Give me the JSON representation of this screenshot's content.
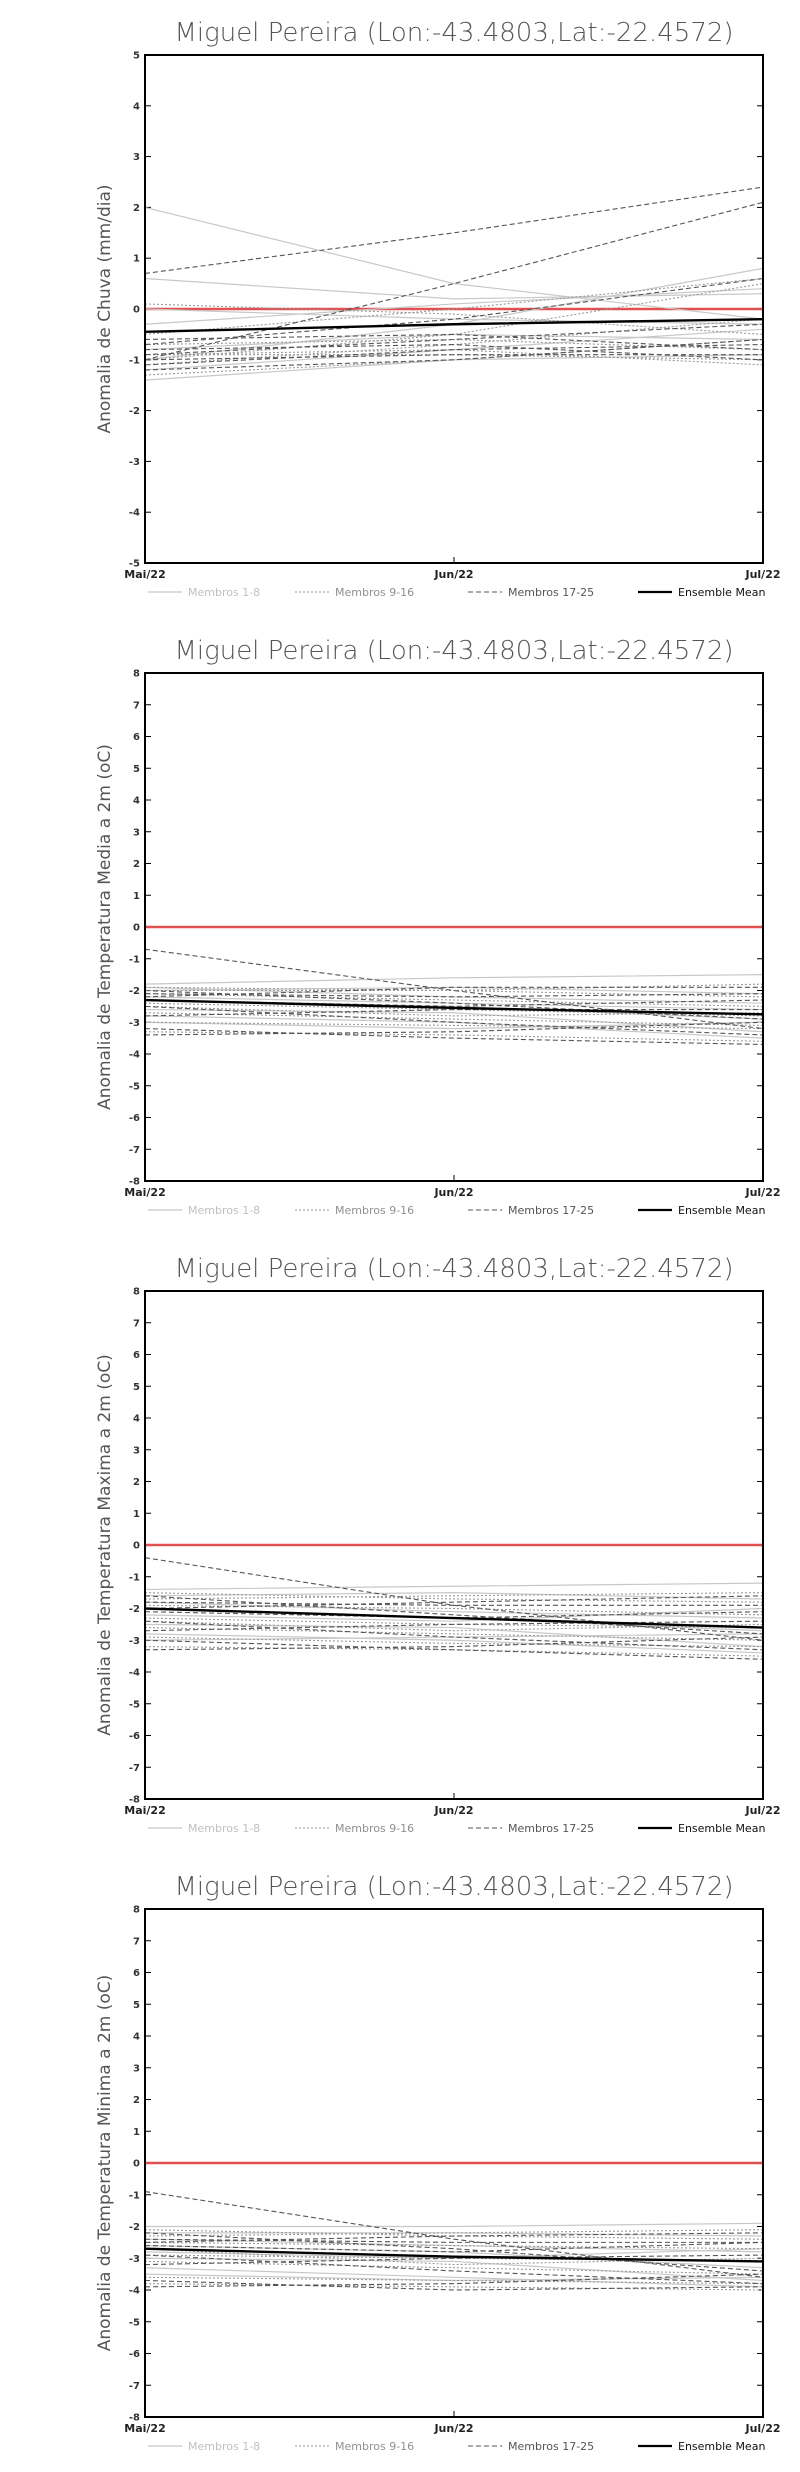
{
  "chart_data": [
    {
      "type": "line",
      "title": "Miguel Pereira (Lon:-43.4803,Lat:-22.4572)",
      "ylabel": "Anomalia de Chuva (mm/dia)",
      "ylim": [
        -5,
        5
      ],
      "yticks": [
        -5,
        -4,
        -3,
        -2,
        -1,
        0,
        1,
        2,
        3,
        4,
        5
      ],
      "categories": [
        "Mai/22",
        "Jun/22",
        "Jul/22"
      ],
      "zero_line_color": "#e05050",
      "legend": [
        {
          "label": "Membros 1-8",
          "style": "light"
        },
        {
          "label": "Membros 9-16",
          "style": "dotted"
        },
        {
          "label": "Membros 17-25",
          "style": "dashed"
        },
        {
          "label": "Ensemble Mean",
          "style": "mean"
        }
      ],
      "series": [
        {
          "group": "m1-8",
          "values": [
            2.0,
            0.5,
            -0.2
          ]
        },
        {
          "group": "m1-8",
          "values": [
            -1.0,
            -0.3,
            0.8
          ]
        },
        {
          "group": "m1-8",
          "values": [
            -1.4,
            -1.0,
            -0.9
          ]
        },
        {
          "group": "m1-8",
          "values": [
            0.6,
            0.2,
            0.3
          ]
        },
        {
          "group": "m1-8",
          "values": [
            -0.3,
            0.1,
            0.4
          ]
        },
        {
          "group": "m1-8",
          "values": [
            -0.8,
            -0.5,
            -0.6
          ]
        },
        {
          "group": "m1-8",
          "values": [
            -1.2,
            -0.8,
            -0.4
          ]
        },
        {
          "group": "m1-8",
          "values": [
            0.0,
            -0.2,
            -0.3
          ]
        },
        {
          "group": "m9-16",
          "values": [
            -1.0,
            -0.5,
            0.5
          ]
        },
        {
          "group": "m9-16",
          "values": [
            -0.9,
            -0.9,
            -1.0
          ]
        },
        {
          "group": "m9-16",
          "values": [
            -0.5,
            0.0,
            0.6
          ]
        },
        {
          "group": "m9-16",
          "values": [
            -1.1,
            -0.7,
            -0.2
          ]
        },
        {
          "group": "m9-16",
          "values": [
            -0.7,
            -0.6,
            -0.8
          ]
        },
        {
          "group": "m9-16",
          "values": [
            -1.3,
            -1.0,
            -0.6
          ]
        },
        {
          "group": "m9-16",
          "values": [
            0.1,
            -0.1,
            -0.5
          ]
        },
        {
          "group": "m9-16",
          "values": [
            -0.9,
            -0.8,
            -1.1
          ]
        },
        {
          "group": "m17-25",
          "values": [
            0.7,
            1.5,
            2.4
          ]
        },
        {
          "group": "m17-25",
          "values": [
            -1.0,
            0.5,
            2.1
          ]
        },
        {
          "group": "m17-25",
          "values": [
            -0.7,
            -0.2,
            0.6
          ]
        },
        {
          "group": "m17-25",
          "values": [
            -1.1,
            -0.8,
            -0.7
          ]
        },
        {
          "group": "m17-25",
          "values": [
            -0.9,
            -0.6,
            -0.3
          ]
        },
        {
          "group": "m17-25",
          "values": [
            -1.0,
            -0.9,
            -0.9
          ]
        },
        {
          "group": "m17-25",
          "values": [
            -0.6,
            -0.5,
            -0.8
          ]
        },
        {
          "group": "m17-25",
          "values": [
            -1.2,
            -1.0,
            -0.6
          ]
        },
        {
          "group": "m17-25",
          "values": [
            -0.8,
            -0.7,
            -1.0
          ]
        },
        {
          "group": "mean",
          "values": [
            -0.45,
            -0.3,
            -0.2
          ]
        }
      ]
    },
    {
      "type": "line",
      "title": "Miguel Pereira (Lon:-43.4803,Lat:-22.4572)",
      "ylabel": "Anomalia de Temperatura Media a 2m (oC)",
      "ylim": [
        -8,
        8
      ],
      "yticks": [
        -8,
        -7,
        -6,
        -5,
        -4,
        -3,
        -2,
        -1,
        0,
        1,
        2,
        3,
        4,
        5,
        6,
        7,
        8
      ],
      "categories": [
        "Mai/22",
        "Jun/22",
        "Jul/22"
      ],
      "zero_line_color": "#e05050",
      "legend": [
        {
          "label": "Membros 1-8",
          "style": "light"
        },
        {
          "label": "Membros 9-16",
          "style": "dotted"
        },
        {
          "label": "Membros 17-25",
          "style": "dashed"
        },
        {
          "label": "Ensemble Mean",
          "style": "mean"
        }
      ],
      "series": [
        {
          "group": "m1-8",
          "values": [
            -1.8,
            -1.6,
            -1.5
          ]
        },
        {
          "group": "m1-8",
          "values": [
            -2.3,
            -2.5,
            -2.9
          ]
        },
        {
          "group": "m1-8",
          "values": [
            -3.0,
            -3.2,
            -3.0
          ]
        },
        {
          "group": "m1-8",
          "values": [
            -2.0,
            -1.9,
            -2.1
          ]
        },
        {
          "group": "m1-8",
          "values": [
            -2.6,
            -2.7,
            -3.3
          ]
        },
        {
          "group": "m1-8",
          "values": [
            -2.2,
            -2.4,
            -2.6
          ]
        },
        {
          "group": "m1-8",
          "values": [
            -1.9,
            -2.2,
            -2.4
          ]
        },
        {
          "group": "m1-8",
          "values": [
            -2.8,
            -3.0,
            -3.5
          ]
        },
        {
          "group": "m9-16",
          "values": [
            -2.0,
            -2.0,
            -1.8
          ]
        },
        {
          "group": "m9-16",
          "values": [
            -2.4,
            -2.6,
            -2.8
          ]
        },
        {
          "group": "m9-16",
          "values": [
            -3.3,
            -3.4,
            -3.6
          ]
        },
        {
          "group": "m9-16",
          "values": [
            -2.1,
            -2.3,
            -2.5
          ]
        },
        {
          "group": "m9-16",
          "values": [
            -2.7,
            -2.9,
            -3.1
          ]
        },
        {
          "group": "m9-16",
          "values": [
            -1.9,
            -2.0,
            -2.2
          ]
        },
        {
          "group": "m9-16",
          "values": [
            -2.5,
            -2.8,
            -2.7
          ]
        },
        {
          "group": "m9-16",
          "values": [
            -3.0,
            -3.1,
            -3.2
          ]
        },
        {
          "group": "m17-25",
          "values": [
            -0.7,
            -2.0,
            -3.2
          ]
        },
        {
          "group": "m17-25",
          "values": [
            -2.2,
            -1.9,
            -1.9
          ]
        },
        {
          "group": "m17-25",
          "values": [
            -3.2,
            -3.5,
            -3.7
          ]
        },
        {
          "group": "m17-25",
          "values": [
            -2.3,
            -2.5,
            -2.3
          ]
        },
        {
          "group": "m17-25",
          "values": [
            -2.0,
            -2.4,
            -2.9
          ]
        },
        {
          "group": "m17-25",
          "values": [
            -2.8,
            -2.6,
            -2.6
          ]
        },
        {
          "group": "m17-25",
          "values": [
            -2.5,
            -3.0,
            -3.4
          ]
        },
        {
          "group": "m17-25",
          "values": [
            -2.1,
            -2.2,
            -2.1
          ]
        },
        {
          "group": "m17-25",
          "values": [
            -3.4,
            -3.3,
            -3.0
          ]
        },
        {
          "group": "mean",
          "values": [
            -2.3,
            -2.55,
            -2.75
          ]
        }
      ]
    },
    {
      "type": "line",
      "title": "Miguel Pereira (Lon:-43.4803,Lat:-22.4572)",
      "ylabel": "Anomalia de Temperatura Maxima a 2m (oC)",
      "ylim": [
        -8,
        8
      ],
      "yticks": [
        -8,
        -7,
        -6,
        -5,
        -4,
        -3,
        -2,
        -1,
        0,
        1,
        2,
        3,
        4,
        5,
        6,
        7,
        8
      ],
      "categories": [
        "Mai/22",
        "Jun/22",
        "Jul/22"
      ],
      "zero_line_color": "#e05050",
      "legend": [
        {
          "label": "Membros 1-8",
          "style": "light"
        },
        {
          "label": "Membros 9-16",
          "style": "dotted"
        },
        {
          "label": "Membros 17-25",
          "style": "dashed"
        },
        {
          "label": "Ensemble Mean",
          "style": "mean"
        }
      ],
      "series": [
        {
          "group": "m1-8",
          "values": [
            -1.4,
            -1.3,
            -1.2
          ]
        },
        {
          "group": "m1-8",
          "values": [
            -2.0,
            -2.3,
            -2.7
          ]
        },
        {
          "group": "m1-8",
          "values": [
            -3.0,
            -2.9,
            -2.8
          ]
        },
        {
          "group": "m1-8",
          "values": [
            -1.6,
            -1.5,
            -1.7
          ]
        },
        {
          "group": "m1-8",
          "values": [
            -2.5,
            -2.6,
            -3.2
          ]
        },
        {
          "group": "m1-8",
          "values": [
            -1.8,
            -2.1,
            -2.3
          ]
        },
        {
          "group": "m1-8",
          "values": [
            -2.2,
            -2.4,
            -2.0
          ]
        },
        {
          "group": "m1-8",
          "values": [
            -2.8,
            -3.0,
            -3.4
          ]
        },
        {
          "group": "m9-16",
          "values": [
            -1.7,
            -1.6,
            -1.5
          ]
        },
        {
          "group": "m9-16",
          "values": [
            -2.3,
            -2.5,
            -2.6
          ]
        },
        {
          "group": "m9-16",
          "values": [
            -3.2,
            -3.3,
            -3.5
          ]
        },
        {
          "group": "m9-16",
          "values": [
            -1.9,
            -2.0,
            -2.2
          ]
        },
        {
          "group": "m9-16",
          "values": [
            -2.6,
            -2.8,
            -3.0
          ]
        },
        {
          "group": "m9-16",
          "values": [
            -1.5,
            -1.7,
            -1.8
          ]
        },
        {
          "group": "m9-16",
          "values": [
            -2.4,
            -2.7,
            -2.5
          ]
        },
        {
          "group": "m9-16",
          "values": [
            -2.9,
            -3.1,
            -3.2
          ]
        },
        {
          "group": "m17-25",
          "values": [
            -0.4,
            -1.9,
            -3.0
          ]
        },
        {
          "group": "m17-25",
          "values": [
            -2.0,
            -1.8,
            -1.6
          ]
        },
        {
          "group": "m17-25",
          "values": [
            -3.0,
            -3.3,
            -3.6
          ]
        },
        {
          "group": "m17-25",
          "values": [
            -2.1,
            -2.3,
            -2.1
          ]
        },
        {
          "group": "m17-25",
          "values": [
            -1.6,
            -2.2,
            -2.8
          ]
        },
        {
          "group": "m17-25",
          "values": [
            -2.7,
            -2.5,
            -2.4
          ]
        },
        {
          "group": "m17-25",
          "values": [
            -2.4,
            -2.9,
            -3.3
          ]
        },
        {
          "group": "m17-25",
          "values": [
            -1.8,
            -1.9,
            -1.9
          ]
        },
        {
          "group": "m17-25",
          "values": [
            -3.3,
            -3.2,
            -2.9
          ]
        },
        {
          "group": "mean",
          "values": [
            -2.0,
            -2.3,
            -2.6
          ]
        }
      ]
    },
    {
      "type": "line",
      "title": "Miguel Pereira (Lon:-43.4803,Lat:-22.4572)",
      "ylabel": "Anomalia de Temperatura Minima a 2m (oC)",
      "ylim": [
        -8,
        8
      ],
      "yticks": [
        -8,
        -7,
        -6,
        -5,
        -4,
        -3,
        -2,
        -1,
        0,
        1,
        2,
        3,
        4,
        5,
        6,
        7,
        8
      ],
      "categories": [
        "Mai/22",
        "Jun/22",
        "Jul/22"
      ],
      "zero_line_color": "#e05050",
      "legend": [
        {
          "label": "Membros 1-8",
          "style": "light"
        },
        {
          "label": "Membros 9-16",
          "style": "dotted"
        },
        {
          "label": "Membros 17-25",
          "style": "dashed"
        },
        {
          "label": "Ensemble Mean",
          "style": "mean"
        }
      ],
      "series": [
        {
          "group": "m1-8",
          "values": [
            -2.0,
            -2.0,
            -1.9
          ]
        },
        {
          "group": "m1-8",
          "values": [
            -2.6,
            -2.8,
            -3.3
          ]
        },
        {
          "group": "m1-8",
          "values": [
            -3.5,
            -3.7,
            -3.6
          ]
        },
        {
          "group": "m1-8",
          "values": [
            -2.2,
            -2.2,
            -2.3
          ]
        },
        {
          "group": "m1-8",
          "values": [
            -3.0,
            -3.1,
            -3.7
          ]
        },
        {
          "group": "m1-8",
          "values": [
            -2.4,
            -2.6,
            -2.8
          ]
        },
        {
          "group": "m1-8",
          "values": [
            -2.8,
            -3.0,
            -2.7
          ]
        },
        {
          "group": "m1-8",
          "values": [
            -3.3,
            -3.6,
            -3.9
          ]
        },
        {
          "group": "m9-16",
          "values": [
            -2.3,
            -2.2,
            -2.1
          ]
        },
        {
          "group": "m9-16",
          "values": [
            -2.9,
            -3.0,
            -3.1
          ]
        },
        {
          "group": "m9-16",
          "values": [
            -3.8,
            -3.9,
            -4.0
          ]
        },
        {
          "group": "m9-16",
          "values": [
            -2.5,
            -2.6,
            -2.7
          ]
        },
        {
          "group": "m9-16",
          "values": [
            -3.1,
            -3.3,
            -3.5
          ]
        },
        {
          "group": "m9-16",
          "values": [
            -2.1,
            -2.3,
            -2.4
          ]
        },
        {
          "group": "m9-16",
          "values": [
            -2.7,
            -3.2,
            -3.0
          ]
        },
        {
          "group": "m9-16",
          "values": [
            -3.6,
            -3.7,
            -3.8
          ]
        },
        {
          "group": "m17-25",
          "values": [
            -0.9,
            -2.4,
            -3.6
          ]
        },
        {
          "group": "m17-25",
          "values": [
            -2.5,
            -2.3,
            -2.2
          ]
        },
        {
          "group": "m17-25",
          "values": [
            -3.7,
            -4.0,
            -3.9
          ]
        },
        {
          "group": "m17-25",
          "values": [
            -2.6,
            -2.8,
            -2.5
          ]
        },
        {
          "group": "m17-25",
          "values": [
            -2.2,
            -2.7,
            -3.4
          ]
        },
        {
          "group": "m17-25",
          "values": [
            -3.2,
            -3.0,
            -2.9
          ]
        },
        {
          "group": "m17-25",
          "values": [
            -2.9,
            -3.4,
            -3.8
          ]
        },
        {
          "group": "m17-25",
          "values": [
            -2.4,
            -2.5,
            -2.5
          ]
        },
        {
          "group": "m17-25",
          "values": [
            -3.9,
            -3.8,
            -3.5
          ]
        },
        {
          "group": "mean",
          "values": [
            -2.7,
            -2.95,
            -3.1
          ]
        }
      ]
    }
  ]
}
